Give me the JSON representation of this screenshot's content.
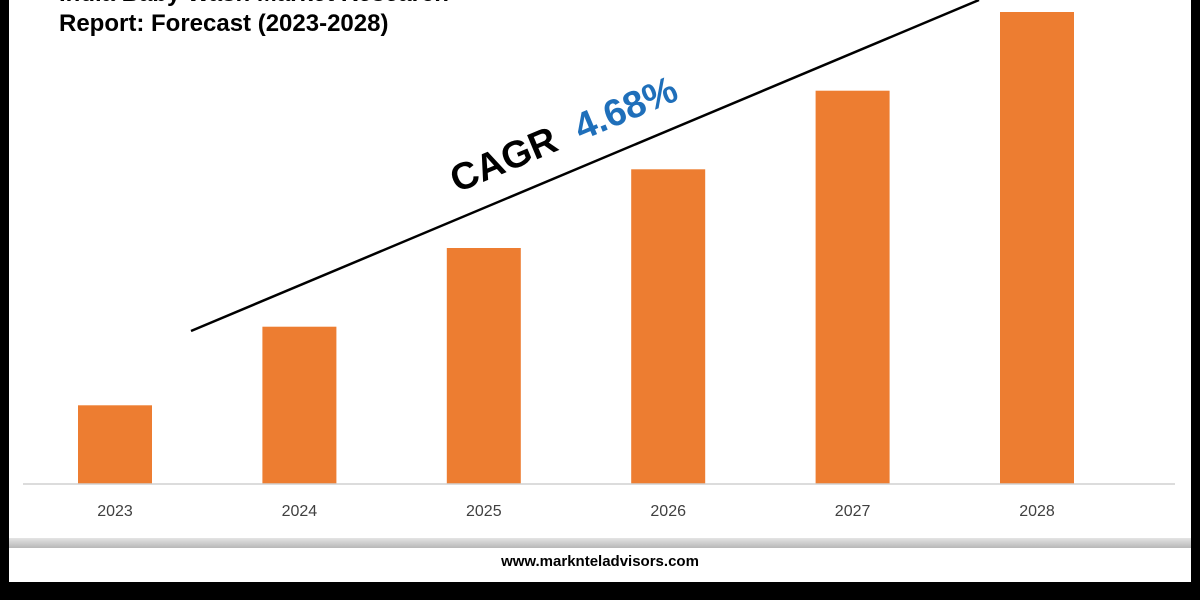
{
  "chart_data": {
    "type": "bar",
    "title_line1": "India Baby Wash Market Research",
    "title_line2": "Report: Forecast (2023-2028)",
    "categories": [
      "2023",
      "2024",
      "2025",
      "2026",
      "2027",
      "2028"
    ],
    "values": [
      1.0,
      2.0,
      3.0,
      4.0,
      5.0,
      6.0
    ],
    "ylim": [
      0,
      6.0
    ],
    "bar_color": "#ed7d31",
    "grid": false,
    "legend": "none",
    "annotation": {
      "prefix": "CAGR",
      "value": "4.68%",
      "value_color": "#1f6fba",
      "trend_line": "diagonal rising across bars"
    }
  },
  "footer": {
    "url": "www.marknteladvisors.com"
  }
}
